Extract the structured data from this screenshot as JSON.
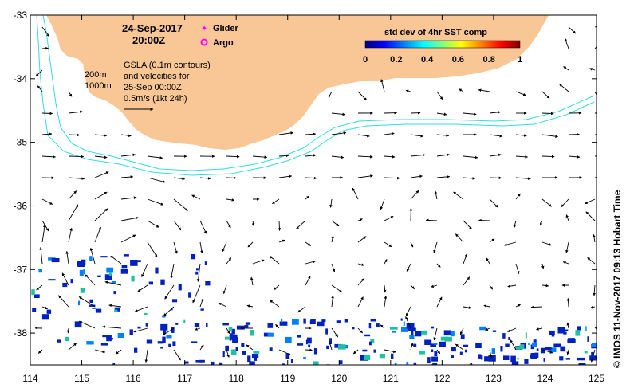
{
  "title": {
    "date": "24-Sep-2017",
    "time": "20:00Z"
  },
  "legend": {
    "glider": "Glider",
    "argo": "Argo",
    "glider_color": "#ff00ff",
    "argo_color": "#ff00ff"
  },
  "gsla_note": {
    "line1": "GSLA (0.1m contours)",
    "line2": "and velocities for",
    "line3": "25-Sep 00:00Z",
    "line4": "0.5m/s (1kt 24h)"
  },
  "isobaths": {
    "label_200": "200m",
    "label_1000": "1000m",
    "color": "#33dddd"
  },
  "colorbar": {
    "title": "std dev of 4hr SST comp",
    "ticks": [
      "0",
      "0.2",
      "0.4",
      "0.6",
      "0.8",
      "1"
    ],
    "stops": [
      "#00007f",
      "#0000ff",
      "#007fff",
      "#00ffff",
      "#7fff7f",
      "#ffff00",
      "#ff7f00",
      "#ff0000",
      "#7f0000"
    ]
  },
  "credit": "© IMOS 11-Nov-2017 09:13 Hobart Time",
  "colors": {
    "land": "#f9c795",
    "sst_patch": "#0020c0",
    "arrow": "#000000"
  },
  "chart_data": {
    "type": "map",
    "x_ticks": [
      "114",
      "115",
      "116",
      "117",
      "118",
      "119",
      "120",
      "121",
      "122",
      "123",
      "124",
      "125"
    ],
    "y_ticks": [
      "-33",
      "-34",
      "-35",
      "-36",
      "-37",
      "-38"
    ],
    "lon_range": [
      114,
      125
    ],
    "lat_range": [
      -38.5,
      -33
    ],
    "x_unit": "longitude (°E)",
    "y_unit": "latitude (°)"
  }
}
